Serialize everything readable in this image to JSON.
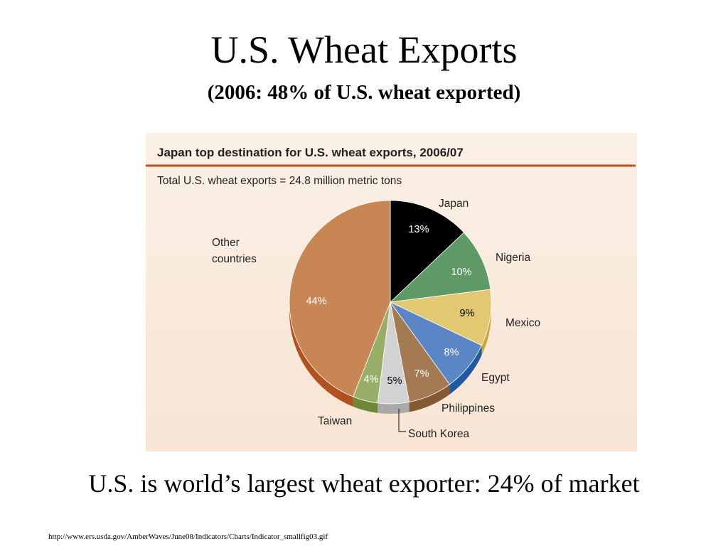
{
  "slide": {
    "title": "U.S. Wheat Exports",
    "subtitle": "(2006: 48% of U.S. wheat exported)",
    "caption": "U.S. is world’s largest wheat exporter: 24% of market",
    "source_url": "http://www.ers.usda.gov/AmberWaves/June08/Indicators/Charts/Indicator_smallfig03.gif"
  },
  "chart_data": {
    "type": "pie",
    "title": "Japan top destination for U.S. wheat exports, 2006/07",
    "subtitle": "Total U.S. wheat exports = 24.8 million metric tons",
    "slices": [
      {
        "name": "Japan",
        "value": 13,
        "label": "13%",
        "color": "#000000",
        "side": "#111111",
        "label_color": "#ffffff"
      },
      {
        "name": "Nigeria",
        "value": 10,
        "label": "10%",
        "color": "#5e9966",
        "side": "#3f7347",
        "label_color": "#ffffff"
      },
      {
        "name": "Mexico",
        "value": 9,
        "label": "9%",
        "color": "#e1c871",
        "side": "#c9a43a",
        "label_color": "#000000"
      },
      {
        "name": "Egypt",
        "value": 8,
        "label": "8%",
        "color": "#5b86c5",
        "side": "#1d5aa0",
        "label_color": "#ffffff"
      },
      {
        "name": "Philippines",
        "value": 7,
        "label": "7%",
        "color": "#a47a52",
        "side": "#845a33",
        "label_color": "#ffffff"
      },
      {
        "name": "South Korea",
        "value": 5,
        "label": "5%",
        "color": "#d2d2d2",
        "side": "#a9a9a9",
        "label_color": "#000000"
      },
      {
        "name": "Taiwan",
        "value": 4,
        "label": "4%",
        "color": "#98ad68",
        "side": "#6f8737",
        "label_color": "#ffffff"
      },
      {
        "name": "Other countries",
        "value": 44,
        "label": "44%",
        "color": "#c98655",
        "side": "#b05220",
        "label_color": "#ffffff"
      }
    ],
    "theme": {
      "rule_color": "#b5541b",
      "text_color": "#222222"
    }
  }
}
